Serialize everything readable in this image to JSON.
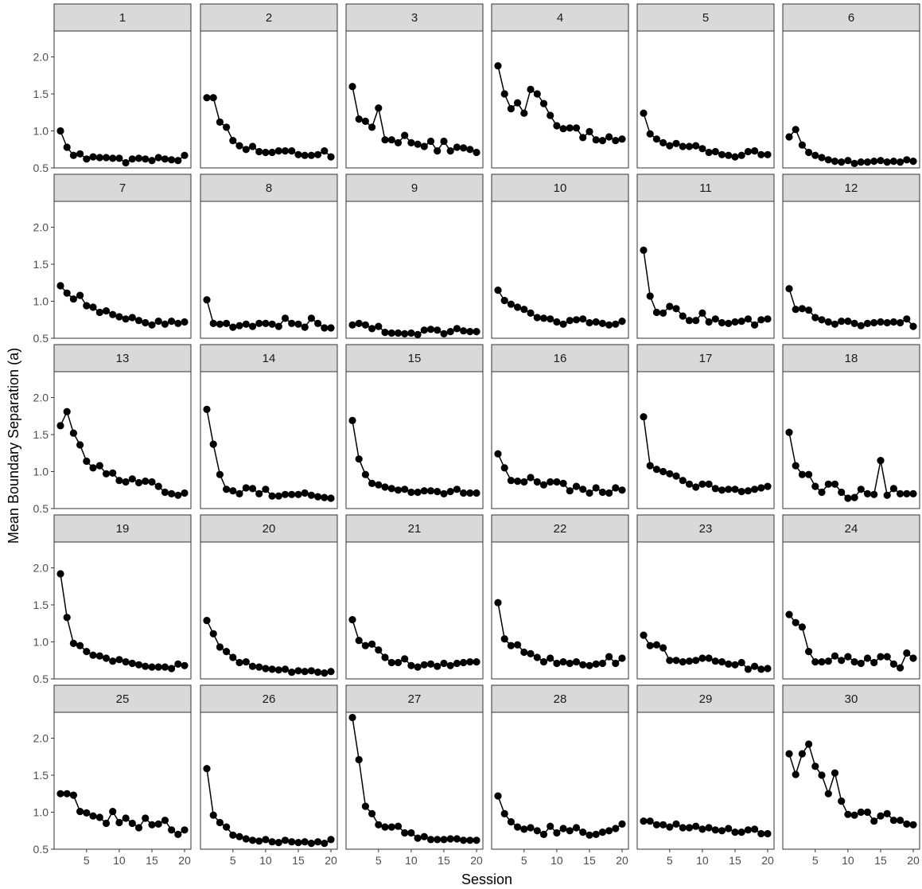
{
  "chart_data": {
    "type": "line",
    "facet_layout": "6 columns x 5 rows",
    "xlabel": "Session",
    "ylabel": "Mean Boundary Separation (a)",
    "xlim": [
      1,
      20
    ],
    "ylim": [
      0.5,
      2.35
    ],
    "x_ticks": [
      5,
      10,
      15,
      20
    ],
    "y_ticks": [
      0.5,
      1.0,
      1.5,
      2.0
    ],
    "y_tick_labels": [
      "0.5",
      "1.0",
      "1.5",
      "2.0"
    ],
    "grid": false,
    "legend": "none",
    "marker": "filled-circle",
    "series_color": "#000000",
    "strip_fill": "#d9d9d9",
    "panels": [
      {
        "label": "1",
        "values": [
          1.0,
          0.78,
          0.67,
          0.69,
          0.62,
          0.65,
          0.64,
          0.64,
          0.63,
          0.63,
          0.57,
          0.62,
          0.63,
          0.62,
          0.6,
          0.64,
          0.62,
          0.61,
          0.6,
          0.67
        ]
      },
      {
        "label": "2",
        "values": [
          1.45,
          1.45,
          1.12,
          1.05,
          0.87,
          0.8,
          0.75,
          0.79,
          0.72,
          0.71,
          0.71,
          0.73,
          0.73,
          0.73,
          0.68,
          0.67,
          0.67,
          0.68,
          0.73,
          0.65
        ]
      },
      {
        "label": "3",
        "values": [
          1.6,
          1.16,
          1.13,
          1.05,
          1.31,
          0.88,
          0.88,
          0.84,
          0.94,
          0.84,
          0.82,
          0.79,
          0.86,
          0.73,
          0.86,
          0.73,
          0.78,
          0.77,
          0.75,
          0.71
        ]
      },
      {
        "label": "4",
        "values": [
          1.88,
          1.5,
          1.3,
          1.38,
          1.24,
          1.56,
          1.5,
          1.37,
          1.21,
          1.07,
          1.03,
          1.04,
          1.04,
          0.91,
          0.99,
          0.88,
          0.87,
          0.92,
          0.87,
          0.89
        ]
      },
      {
        "label": "5",
        "values": [
          1.24,
          0.96,
          0.89,
          0.84,
          0.8,
          0.83,
          0.79,
          0.79,
          0.8,
          0.76,
          0.71,
          0.72,
          0.68,
          0.67,
          0.65,
          0.67,
          0.72,
          0.73,
          0.68,
          0.68
        ]
      },
      {
        "label": "6",
        "values": [
          0.92,
          1.02,
          0.81,
          0.71,
          0.67,
          0.64,
          0.61,
          0.59,
          0.58,
          0.6,
          0.56,
          0.58,
          0.58,
          0.59,
          0.6,
          0.58,
          0.59,
          0.58,
          0.61,
          0.59
        ]
      },
      {
        "label": "7",
        "values": [
          1.21,
          1.11,
          1.03,
          1.08,
          0.94,
          0.92,
          0.85,
          0.87,
          0.82,
          0.79,
          0.76,
          0.78,
          0.74,
          0.71,
          0.68,
          0.73,
          0.69,
          0.73,
          0.7,
          0.72
        ]
      },
      {
        "label": "8",
        "values": [
          1.02,
          0.7,
          0.69,
          0.7,
          0.65,
          0.67,
          0.69,
          0.66,
          0.7,
          0.7,
          0.69,
          0.66,
          0.77,
          0.7,
          0.69,
          0.65,
          0.77,
          0.7,
          0.64,
          0.64
        ]
      },
      {
        "label": "9",
        "values": [
          0.68,
          0.7,
          0.68,
          0.63,
          0.66,
          0.58,
          0.57,
          0.57,
          0.56,
          0.57,
          0.55,
          0.61,
          0.62,
          0.61,
          0.56,
          0.59,
          0.63,
          0.6,
          0.59,
          0.59
        ]
      },
      {
        "label": "10",
        "values": [
          1.15,
          1.01,
          0.96,
          0.92,
          0.89,
          0.84,
          0.78,
          0.77,
          0.76,
          0.72,
          0.69,
          0.74,
          0.75,
          0.76,
          0.71,
          0.72,
          0.7,
          0.68,
          0.69,
          0.73
        ]
      },
      {
        "label": "11",
        "values": [
          1.69,
          1.07,
          0.85,
          0.84,
          0.93,
          0.9,
          0.8,
          0.74,
          0.74,
          0.84,
          0.72,
          0.76,
          0.71,
          0.7,
          0.72,
          0.73,
          0.76,
          0.68,
          0.75,
          0.76
        ]
      },
      {
        "label": "12",
        "values": [
          1.17,
          0.89,
          0.9,
          0.88,
          0.78,
          0.75,
          0.72,
          0.69,
          0.73,
          0.73,
          0.7,
          0.67,
          0.7,
          0.71,
          0.72,
          0.71,
          0.72,
          0.71,
          0.76,
          0.66
        ]
      },
      {
        "label": "13",
        "values": [
          1.62,
          1.81,
          1.52,
          1.36,
          1.14,
          1.05,
          1.08,
          0.97,
          0.98,
          0.88,
          0.86,
          0.9,
          0.85,
          0.87,
          0.86,
          0.8,
          0.72,
          0.7,
          0.68,
          0.71
        ]
      },
      {
        "label": "14",
        "values": [
          1.84,
          1.37,
          0.96,
          0.76,
          0.74,
          0.7,
          0.78,
          0.77,
          0.7,
          0.76,
          0.67,
          0.67,
          0.69,
          0.69,
          0.69,
          0.71,
          0.68,
          0.66,
          0.65,
          0.64
        ]
      },
      {
        "label": "15",
        "values": [
          1.69,
          1.17,
          0.96,
          0.84,
          0.82,
          0.79,
          0.77,
          0.75,
          0.76,
          0.72,
          0.72,
          0.74,
          0.74,
          0.73,
          0.7,
          0.73,
          0.76,
          0.71,
          0.71,
          0.71
        ]
      },
      {
        "label": "16",
        "values": [
          1.24,
          1.05,
          0.88,
          0.87,
          0.86,
          0.92,
          0.86,
          0.82,
          0.86,
          0.86,
          0.84,
          0.74,
          0.8,
          0.76,
          0.71,
          0.78,
          0.72,
          0.71,
          0.78,
          0.75
        ]
      },
      {
        "label": "17",
        "values": [
          1.74,
          1.08,
          1.03,
          1.0,
          0.97,
          0.94,
          0.88,
          0.83,
          0.79,
          0.83,
          0.83,
          0.77,
          0.75,
          0.76,
          0.76,
          0.73,
          0.74,
          0.76,
          0.78,
          0.8
        ]
      },
      {
        "label": "18",
        "values": [
          1.53,
          1.08,
          0.96,
          0.96,
          0.8,
          0.72,
          0.83,
          0.83,
          0.72,
          0.64,
          0.65,
          0.76,
          0.7,
          0.69,
          1.15,
          0.68,
          0.77,
          0.7,
          0.7,
          0.7
        ]
      },
      {
        "label": "19",
        "values": [
          1.92,
          1.33,
          0.98,
          0.95,
          0.87,
          0.82,
          0.81,
          0.78,
          0.74,
          0.76,
          0.73,
          0.71,
          0.69,
          0.67,
          0.66,
          0.66,
          0.66,
          0.64,
          0.7,
          0.68
        ]
      },
      {
        "label": "20",
        "values": [
          1.29,
          1.11,
          0.93,
          0.87,
          0.79,
          0.72,
          0.73,
          0.67,
          0.66,
          0.64,
          0.63,
          0.62,
          0.63,
          0.59,
          0.61,
          0.6,
          0.61,
          0.59,
          0.58,
          0.6
        ]
      },
      {
        "label": "21",
        "values": [
          1.3,
          1.02,
          0.95,
          0.97,
          0.89,
          0.79,
          0.72,
          0.72,
          0.77,
          0.68,
          0.66,
          0.69,
          0.7,
          0.67,
          0.71,
          0.68,
          0.71,
          0.72,
          0.73,
          0.73
        ]
      },
      {
        "label": "22",
        "values": [
          1.53,
          1.04,
          0.95,
          0.96,
          0.86,
          0.84,
          0.79,
          0.73,
          0.78,
          0.71,
          0.73,
          0.71,
          0.73,
          0.69,
          0.68,
          0.7,
          0.71,
          0.8,
          0.71,
          0.78
        ]
      },
      {
        "label": "23",
        "values": [
          1.09,
          0.95,
          0.96,
          0.92,
          0.75,
          0.75,
          0.73,
          0.74,
          0.75,
          0.78,
          0.78,
          0.74,
          0.73,
          0.7,
          0.69,
          0.72,
          0.63,
          0.67,
          0.63,
          0.64
        ]
      },
      {
        "label": "24",
        "values": [
          1.37,
          1.26,
          1.2,
          0.87,
          0.73,
          0.73,
          0.74,
          0.81,
          0.75,
          0.8,
          0.73,
          0.71,
          0.78,
          0.72,
          0.8,
          0.8,
          0.7,
          0.65,
          0.85,
          0.78
        ]
      },
      {
        "label": "25",
        "values": [
          1.25,
          1.25,
          1.23,
          1.01,
          0.99,
          0.95,
          0.93,
          0.85,
          1.01,
          0.86,
          0.92,
          0.85,
          0.79,
          0.92,
          0.83,
          0.84,
          0.89,
          0.76,
          0.7,
          0.76
        ]
      },
      {
        "label": "26",
        "values": [
          1.59,
          0.96,
          0.86,
          0.8,
          0.69,
          0.67,
          0.64,
          0.62,
          0.61,
          0.63,
          0.6,
          0.59,
          0.62,
          0.6,
          0.59,
          0.6,
          0.58,
          0.6,
          0.58,
          0.63
        ]
      },
      {
        "label": "27",
        "values": [
          2.28,
          1.71,
          1.08,
          0.98,
          0.83,
          0.8,
          0.8,
          0.81,
          0.72,
          0.72,
          0.65,
          0.67,
          0.63,
          0.63,
          0.63,
          0.64,
          0.64,
          0.62,
          0.62,
          0.62
        ]
      },
      {
        "label": "28",
        "values": [
          1.22,
          0.98,
          0.87,
          0.8,
          0.77,
          0.79,
          0.75,
          0.7,
          0.81,
          0.72,
          0.78,
          0.75,
          0.79,
          0.73,
          0.69,
          0.7,
          0.73,
          0.75,
          0.78,
          0.84
        ]
      },
      {
        "label": "29",
        "values": [
          0.88,
          0.88,
          0.83,
          0.83,
          0.8,
          0.84,
          0.79,
          0.79,
          0.81,
          0.77,
          0.79,
          0.76,
          0.75,
          0.78,
          0.73,
          0.73,
          0.76,
          0.77,
          0.71,
          0.71
        ]
      },
      {
        "label": "30",
        "values": [
          1.79,
          1.51,
          1.79,
          1.92,
          1.62,
          1.5,
          1.25,
          1.53,
          1.15,
          0.97,
          0.96,
          1.0,
          1.0,
          0.88,
          0.95,
          0.98,
          0.89,
          0.89,
          0.84,
          0.83
        ]
      }
    ]
  }
}
